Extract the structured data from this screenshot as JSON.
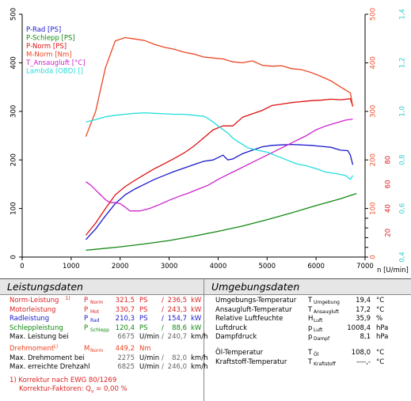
{
  "chart_data": {
    "type": "line",
    "xlabel": "n [U/min]",
    "xlim": [
      0,
      7000
    ],
    "xticks": [
      0,
      1000,
      2000,
      3000,
      4000,
      5000,
      6000,
      7000
    ],
    "y_left": {
      "lim": [
        0,
        500
      ],
      "ticks": [
        0,
        100,
        200,
        300,
        400,
        500
      ]
    },
    "y_right1": {
      "lim": [
        0,
        500
      ],
      "ticks": [
        0,
        20,
        40,
        60,
        80,
        100,
        120,
        140,
        160,
        180,
        200,
        220,
        240,
        260,
        280,
        300,
        320,
        340,
        360,
        380,
        400,
        420,
        440,
        460,
        480,
        500
      ],
      "colors": [
        "#dd2222",
        "#dd2222",
        "#dd2222",
        "#dd2222",
        "#ee5533",
        "#ee5533",
        "#ee5533",
        "#ee5533",
        "#ee5533",
        "#ee5533",
        "#ee5533",
        "#ee5533",
        "#ee5533",
        "#ee5533",
        "#ee5533",
        "#ee5533",
        "#ee5533",
        "#ee5533",
        "#ee5533",
        "#ee5533",
        "#ee5533",
        "#ee5533",
        "#ee5533",
        "#ee5533",
        "#ee5533",
        "#ee5533"
      ]
    },
    "y_right2": {
      "ticks": [
        "0,4",
        "0,6",
        "0,8",
        "1,0",
        "1,2",
        "1,4"
      ],
      "lim": [
        0.4,
        1.4
      ],
      "color": "#33cccc"
    },
    "grid": false,
    "legend_position": "top-left",
    "series": [
      {
        "name": "P-Rad [PS]",
        "color": "#1a1acc",
        "x": [
          1300,
          1500,
          1700,
          1900,
          2100,
          2300,
          2500,
          2700,
          2900,
          3100,
          3300,
          3500,
          3700,
          3900,
          4100,
          4200,
          4300,
          4500,
          4700,
          4900,
          5100,
          5300,
          5500,
          5700,
          5900,
          6100,
          6300,
          6500,
          6650,
          6700,
          6750
        ],
        "y": [
          36,
          58,
          85,
          110,
          128,
          140,
          150,
          160,
          168,
          176,
          183,
          190,
          197,
          200,
          210,
          200,
          202,
          213,
          220,
          227,
          230,
          231,
          232,
          231,
          230,
          228,
          226,
          220,
          219,
          210,
          190
        ]
      },
      {
        "name": "P-Schlepp [PS]",
        "color": "#118811",
        "x": [
          1300,
          1500,
          2000,
          2500,
          3000,
          3500,
          4000,
          4500,
          5000,
          5500,
          6000,
          6500,
          6825
        ],
        "y": [
          14,
          16,
          21,
          27,
          34,
          43,
          53,
          64,
          77,
          91,
          106,
          120,
          131
        ]
      },
      {
        "name": "P-Norm [PS]",
        "color": "#dd1111",
        "x": [
          1300,
          1500,
          1700,
          1900,
          2100,
          2300,
          2500,
          2700,
          2900,
          3100,
          3300,
          3500,
          3700,
          3900,
          4100,
          4300,
          4500,
          4700,
          4900,
          5100,
          5300,
          5500,
          5700,
          5900,
          6100,
          6300,
          6500,
          6700,
          6750
        ],
        "y": [
          45,
          70,
          100,
          128,
          145,
          158,
          170,
          182,
          192,
          203,
          214,
          228,
          245,
          262,
          270,
          270,
          288,
          295,
          302,
          312,
          315,
          318,
          320,
          322,
          323,
          325,
          324,
          326,
          310
        ]
      },
      {
        "name": "M-Norm [Nm]",
        "color": "#ee4422",
        "x": [
          1300,
          1500,
          1700,
          1900,
          2100,
          2300,
          2500,
          2700,
          2900,
          3100,
          3300,
          3500,
          3700,
          3900,
          4100,
          4300,
          4500,
          4700,
          4900,
          5100,
          5300,
          5500,
          5700,
          5900,
          6100,
          6300,
          6500,
          6700,
          6750
        ],
        "y": [
          248,
          300,
          390,
          445,
          452,
          449,
          446,
          438,
          432,
          428,
          422,
          418,
          412,
          410,
          408,
          402,
          400,
          404,
          395,
          393,
          394,
          388,
          386,
          380,
          372,
          363,
          350,
          338,
          310
        ]
      },
      {
        "name": "T_Ansaugluft [°C]",
        "color": "#cc22cc",
        "x": [
          1300,
          1400,
          1500,
          1600,
          1700,
          1800,
          1900,
          2000,
          2100,
          2200,
          2400,
          2600,
          2800,
          3000,
          3200,
          3400,
          3600,
          3800,
          4000,
          4200,
          4400,
          4600,
          4800,
          5000,
          5200,
          5400,
          5600,
          5800,
          6000,
          6200,
          6400,
          6600,
          6750
        ],
        "y": [
          155,
          148,
          138,
          128,
          118,
          112,
          112,
          110,
          103,
          95,
          95,
          100,
          108,
          117,
          125,
          132,
          140,
          148,
          160,
          170,
          180,
          190,
          200,
          210,
          220,
          230,
          240,
          250,
          262,
          270,
          276,
          282,
          284
        ]
      },
      {
        "name": "Lambda (OBD) []",
        "color": "#22dddd",
        "x": [
          1300,
          1500,
          1700,
          1900,
          2100,
          2300,
          2500,
          2700,
          2900,
          3100,
          3300,
          3500,
          3700,
          3800,
          3900,
          4000,
          4200,
          4300,
          4400,
          4500,
          4600,
          4800,
          5000,
          5200,
          5400,
          5600,
          5800,
          6000,
          6200,
          6400,
          6600,
          6700,
          6750
        ],
        "y": [
          278,
          283,
          289,
          292,
          294,
          296,
          297,
          296,
          295,
          294,
          294,
          292,
          290,
          285,
          278,
          270,
          255,
          245,
          238,
          232,
          225,
          220,
          216,
          208,
          200,
          192,
          188,
          182,
          175,
          172,
          168,
          160,
          168
        ]
      }
    ]
  },
  "left_panel": {
    "title": "Leistungsdaten",
    "rows": [
      {
        "label": "Norm-Leistung",
        "note": "1)",
        "sym": "P",
        "sub": "Norm",
        "v1": "321,5",
        "u1": "PS",
        "sep": "/",
        "v2": "236,5",
        "u2": "kW",
        "color": "#dd2222"
      },
      {
        "label": "Motorleistung",
        "note": "",
        "sym": "P",
        "sub": "Mot",
        "v1": "330,7",
        "u1": "PS",
        "sep": "/",
        "v2": "243,3",
        "u2": "kW",
        "color": "#dd2222"
      },
      {
        "label": "Radleistung",
        "note": "",
        "sym": "P",
        "sub": "Rad",
        "v1": "210,3",
        "u1": "PS",
        "sep": "/",
        "v2": "154,7",
        "u2": "kW",
        "color": "#1a1acc"
      },
      {
        "label": "Schleppleistung",
        "note": "",
        "sym": "P",
        "sub": "Schlepp",
        "v1": "120,4",
        "u1": "PS",
        "sep": "/",
        "v2": "88,6",
        "u2": "kW",
        "color": "#118811"
      },
      {
        "label": "Max. Leistung bei",
        "note": "",
        "sym": "",
        "sub": "",
        "v1": "6675",
        "u1": "U/min",
        "sep": "/",
        "v2": "240,7",
        "u2": "km/h",
        "color": "#000000"
      },
      {
        "label": "Drehmoment",
        "note": "1)",
        "sym": "M",
        "sub": "Norm",
        "v1": "449,2",
        "u1": "Nm",
        "sep": "",
        "v2": "",
        "u2": "",
        "color": "#ee4422"
      },
      {
        "label": "Max. Drehmoment bei",
        "note": "",
        "sym": "",
        "sub": "",
        "v1": "2275",
        "u1": "U/min",
        "sep": "/",
        "v2": "82,0",
        "u2": "km/h",
        "color": "#000000"
      },
      {
        "label": "Max. erreichte Drehzahl",
        "note": "",
        "sym": "",
        "sub": "",
        "v1": "6825",
        "u1": "U/min",
        "sep": "/",
        "v2": "246,0",
        "u2": "km/h",
        "color": "#000000"
      }
    ],
    "footnote_1": "1) Korrektur nach EWG 80/1269",
    "footnote_2a": "Korrektur-Faktoren: Q",
    "footnote_2b": "v",
    "footnote_2c": " =   0,00 %"
  },
  "right_panel": {
    "title": "Umgebungsdaten",
    "rows": [
      {
        "label": "Umgebungs-Temperatur",
        "sym": "T",
        "sub": "Umgebung",
        "val": "19,4",
        "unit": "°C"
      },
      {
        "label": "Ansaugluft-Temperatur",
        "sym": "T",
        "sub": "Ansaugluft",
        "val": "17,2",
        "unit": "°C"
      },
      {
        "label": "Relative Luftfeuchte",
        "sym": "H",
        "sub": "Luft",
        "val": "35,9",
        "unit": "%"
      },
      {
        "label": "Luftdruck",
        "sym": "p",
        "sub": "Luft",
        "val": "1008,4",
        "unit": "hPa"
      },
      {
        "label": "Dampfdruck",
        "sym": "p",
        "sub": "Dampf",
        "val": "8,1",
        "unit": "hPa"
      },
      {
        "label": "Öl-Temperatur",
        "sym": "T",
        "sub": "Öl",
        "val": "108,0",
        "unit": "°C"
      },
      {
        "label": "Kraftstoff-Temperatur",
        "sym": "T",
        "sub": "Kraftstoff",
        "val": "----,-",
        "unit": "°C"
      }
    ]
  }
}
